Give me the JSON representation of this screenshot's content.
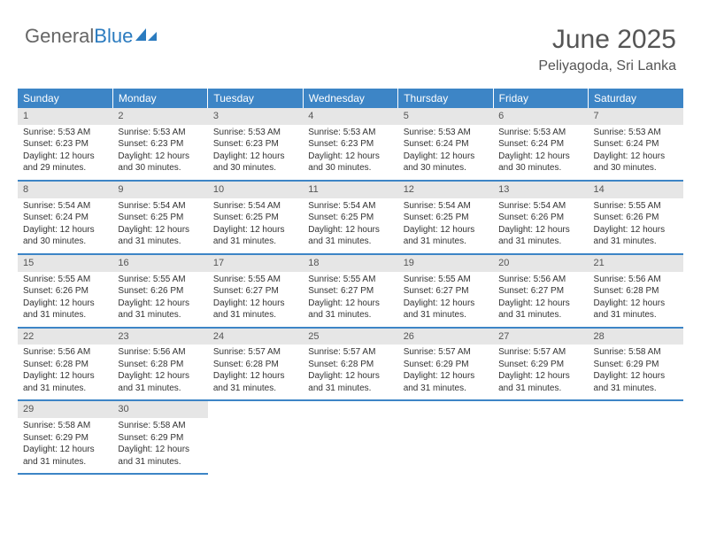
{
  "logo": {
    "part1": "General",
    "part2": "Blue"
  },
  "title": "June 2025",
  "location": "Peliyagoda, Sri Lanka",
  "colors": {
    "header_bg": "#3d85c6",
    "header_text": "#ffffff",
    "daynum_bg": "#e6e6e6",
    "text": "#333333",
    "logo_gray": "#666666",
    "logo_blue": "#2b7bbf",
    "border": "#3d85c6"
  },
  "day_names": [
    "Sunday",
    "Monday",
    "Tuesday",
    "Wednesday",
    "Thursday",
    "Friday",
    "Saturday"
  ],
  "weeks": [
    [
      {
        "n": "1",
        "sr": "Sunrise: 5:53 AM",
        "ss": "Sunset: 6:23 PM",
        "dl": "Daylight: 12 hours and 29 minutes."
      },
      {
        "n": "2",
        "sr": "Sunrise: 5:53 AM",
        "ss": "Sunset: 6:23 PM",
        "dl": "Daylight: 12 hours and 30 minutes."
      },
      {
        "n": "3",
        "sr": "Sunrise: 5:53 AM",
        "ss": "Sunset: 6:23 PM",
        "dl": "Daylight: 12 hours and 30 minutes."
      },
      {
        "n": "4",
        "sr": "Sunrise: 5:53 AM",
        "ss": "Sunset: 6:23 PM",
        "dl": "Daylight: 12 hours and 30 minutes."
      },
      {
        "n": "5",
        "sr": "Sunrise: 5:53 AM",
        "ss": "Sunset: 6:24 PM",
        "dl": "Daylight: 12 hours and 30 minutes."
      },
      {
        "n": "6",
        "sr": "Sunrise: 5:53 AM",
        "ss": "Sunset: 6:24 PM",
        "dl": "Daylight: 12 hours and 30 minutes."
      },
      {
        "n": "7",
        "sr": "Sunrise: 5:53 AM",
        "ss": "Sunset: 6:24 PM",
        "dl": "Daylight: 12 hours and 30 minutes."
      }
    ],
    [
      {
        "n": "8",
        "sr": "Sunrise: 5:54 AM",
        "ss": "Sunset: 6:24 PM",
        "dl": "Daylight: 12 hours and 30 minutes."
      },
      {
        "n": "9",
        "sr": "Sunrise: 5:54 AM",
        "ss": "Sunset: 6:25 PM",
        "dl": "Daylight: 12 hours and 31 minutes."
      },
      {
        "n": "10",
        "sr": "Sunrise: 5:54 AM",
        "ss": "Sunset: 6:25 PM",
        "dl": "Daylight: 12 hours and 31 minutes."
      },
      {
        "n": "11",
        "sr": "Sunrise: 5:54 AM",
        "ss": "Sunset: 6:25 PM",
        "dl": "Daylight: 12 hours and 31 minutes."
      },
      {
        "n": "12",
        "sr": "Sunrise: 5:54 AM",
        "ss": "Sunset: 6:25 PM",
        "dl": "Daylight: 12 hours and 31 minutes."
      },
      {
        "n": "13",
        "sr": "Sunrise: 5:54 AM",
        "ss": "Sunset: 6:26 PM",
        "dl": "Daylight: 12 hours and 31 minutes."
      },
      {
        "n": "14",
        "sr": "Sunrise: 5:55 AM",
        "ss": "Sunset: 6:26 PM",
        "dl": "Daylight: 12 hours and 31 minutes."
      }
    ],
    [
      {
        "n": "15",
        "sr": "Sunrise: 5:55 AM",
        "ss": "Sunset: 6:26 PM",
        "dl": "Daylight: 12 hours and 31 minutes."
      },
      {
        "n": "16",
        "sr": "Sunrise: 5:55 AM",
        "ss": "Sunset: 6:26 PM",
        "dl": "Daylight: 12 hours and 31 minutes."
      },
      {
        "n": "17",
        "sr": "Sunrise: 5:55 AM",
        "ss": "Sunset: 6:27 PM",
        "dl": "Daylight: 12 hours and 31 minutes."
      },
      {
        "n": "18",
        "sr": "Sunrise: 5:55 AM",
        "ss": "Sunset: 6:27 PM",
        "dl": "Daylight: 12 hours and 31 minutes."
      },
      {
        "n": "19",
        "sr": "Sunrise: 5:55 AM",
        "ss": "Sunset: 6:27 PM",
        "dl": "Daylight: 12 hours and 31 minutes."
      },
      {
        "n": "20",
        "sr": "Sunrise: 5:56 AM",
        "ss": "Sunset: 6:27 PM",
        "dl": "Daylight: 12 hours and 31 minutes."
      },
      {
        "n": "21",
        "sr": "Sunrise: 5:56 AM",
        "ss": "Sunset: 6:28 PM",
        "dl": "Daylight: 12 hours and 31 minutes."
      }
    ],
    [
      {
        "n": "22",
        "sr": "Sunrise: 5:56 AM",
        "ss": "Sunset: 6:28 PM",
        "dl": "Daylight: 12 hours and 31 minutes."
      },
      {
        "n": "23",
        "sr": "Sunrise: 5:56 AM",
        "ss": "Sunset: 6:28 PM",
        "dl": "Daylight: 12 hours and 31 minutes."
      },
      {
        "n": "24",
        "sr": "Sunrise: 5:57 AM",
        "ss": "Sunset: 6:28 PM",
        "dl": "Daylight: 12 hours and 31 minutes."
      },
      {
        "n": "25",
        "sr": "Sunrise: 5:57 AM",
        "ss": "Sunset: 6:28 PM",
        "dl": "Daylight: 12 hours and 31 minutes."
      },
      {
        "n": "26",
        "sr": "Sunrise: 5:57 AM",
        "ss": "Sunset: 6:29 PM",
        "dl": "Daylight: 12 hours and 31 minutes."
      },
      {
        "n": "27",
        "sr": "Sunrise: 5:57 AM",
        "ss": "Sunset: 6:29 PM",
        "dl": "Daylight: 12 hours and 31 minutes."
      },
      {
        "n": "28",
        "sr": "Sunrise: 5:58 AM",
        "ss": "Sunset: 6:29 PM",
        "dl": "Daylight: 12 hours and 31 minutes."
      }
    ],
    [
      {
        "n": "29",
        "sr": "Sunrise: 5:58 AM",
        "ss": "Sunset: 6:29 PM",
        "dl": "Daylight: 12 hours and 31 minutes."
      },
      {
        "n": "30",
        "sr": "Sunrise: 5:58 AM",
        "ss": "Sunset: 6:29 PM",
        "dl": "Daylight: 12 hours and 31 minutes."
      },
      null,
      null,
      null,
      null,
      null
    ]
  ]
}
